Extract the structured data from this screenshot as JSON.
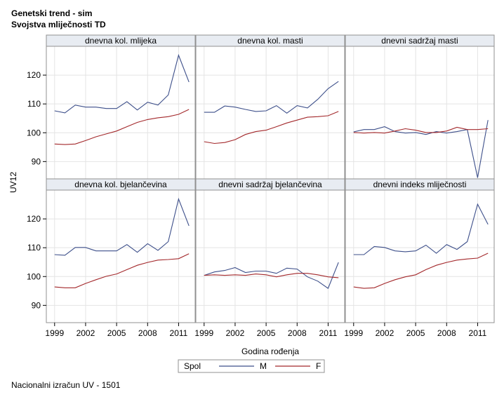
{
  "titles": {
    "line1": "Genetski trend - sim",
    "line2": "Svojstva mliječnosti TD"
  },
  "footnote": "Nacionalni izračun UV - 1501",
  "legend": {
    "title": "Spol",
    "entries": [
      {
        "name": "M",
        "color": "#3d4f8a"
      },
      {
        "name": "F",
        "color": "#a3282b"
      }
    ]
  },
  "chart_data": {
    "type": "line",
    "layout": "panel-grid-2x3",
    "xlabel": "Godina rođenja",
    "ylabel": "UV12",
    "ylim": [
      84,
      130
    ],
    "yticks": [
      90,
      100,
      110,
      120
    ],
    "xlim": [
      1998.2,
      2012.6
    ],
    "xticks": [
      1999,
      2002,
      2005,
      2008,
      2011
    ],
    "x": [
      1999,
      2000,
      2001,
      2002,
      2003,
      2004,
      2005,
      2006,
      2007,
      2008,
      2009,
      2010,
      2011,
      2012
    ],
    "grid": true,
    "panels": [
      {
        "title": "dnevna kol. mlijeka",
        "series": [
          {
            "name": "M",
            "values": [
              107.6,
              106.9,
              109.6,
              108.9,
              108.9,
              108.4,
              108.4,
              110.8,
              107.9,
              110.6,
              109.6,
              113.1,
              126.9,
              117.6
            ]
          },
          {
            "name": "F",
            "values": [
              96.1,
              95.9,
              96.1,
              97.3,
              98.6,
              99.6,
              100.6,
              102.1,
              103.6,
              104.6,
              105.2,
              105.6,
              106.4,
              108.1
            ]
          }
        ]
      },
      {
        "title": "dnevna kol. masti",
        "series": [
          {
            "name": "M",
            "values": [
              107.1,
              107.1,
              109.3,
              108.9,
              108.1,
              107.4,
              107.6,
              109.4,
              106.8,
              109.4,
              108.6,
              111.6,
              115.3,
              117.8
            ]
          },
          {
            "name": "F",
            "values": [
              96.9,
              96.3,
              96.6,
              97.6,
              99.4,
              100.4,
              100.9,
              102.1,
              103.4,
              104.4,
              105.4,
              105.6,
              105.9,
              107.4
            ]
          }
        ]
      },
      {
        "title": "dnevni sadržaj masti",
        "series": [
          {
            "name": "M",
            "values": [
              100.3,
              101.1,
              101.1,
              102.1,
              100.4,
              99.9,
              100.1,
              99.4,
              100.4,
              99.9,
              100.4,
              101.1,
              84.4,
              104.4
            ]
          },
          {
            "name": "F",
            "values": [
              100.1,
              99.9,
              100.1,
              99.9,
              100.6,
              101.4,
              100.9,
              100.1,
              100.1,
              100.6,
              101.9,
              101.1,
              101.1,
              101.4
            ]
          }
        ]
      },
      {
        "title": "dnevna kol. bjelančevina",
        "series": [
          {
            "name": "M",
            "values": [
              107.6,
              107.4,
              110.1,
              110.1,
              108.9,
              108.9,
              108.9,
              111.1,
              108.4,
              111.4,
              109.1,
              112.1,
              126.9,
              117.6
            ]
          },
          {
            "name": "F",
            "values": [
              96.4,
              96.1,
              96.1,
              97.6,
              98.9,
              100.1,
              100.9,
              102.4,
              103.9,
              104.9,
              105.7,
              105.9,
              106.2,
              107.9
            ]
          }
        ]
      },
      {
        "title": "dnevni sadržaj bjelančevina",
        "series": [
          {
            "name": "M",
            "values": [
              100.4,
              101.6,
              102.1,
              103.1,
              101.4,
              101.9,
              101.9,
              101.1,
              102.9,
              102.6,
              99.9,
              98.4,
              95.9,
              104.9
            ]
          },
          {
            "name": "F",
            "values": [
              100.4,
              100.6,
              100.4,
              100.6,
              100.4,
              100.9,
              100.6,
              99.9,
              100.6,
              101.1,
              101.1,
              100.6,
              99.9,
              99.6
            ]
          }
        ]
      },
      {
        "title": "dnevni indeks mliječnosti",
        "series": [
          {
            "name": "M",
            "values": [
              107.6,
              107.6,
              110.4,
              110.1,
              108.9,
              108.6,
              108.9,
              110.9,
              108.1,
              111.1,
              109.4,
              112.1,
              125.1,
              118.1
            ]
          },
          {
            "name": "F",
            "values": [
              96.4,
              95.9,
              96.1,
              97.6,
              98.9,
              99.9,
              100.6,
              102.4,
              103.9,
              104.9,
              105.7,
              106.1,
              106.4,
              108.1
            ]
          }
        ]
      }
    ]
  }
}
